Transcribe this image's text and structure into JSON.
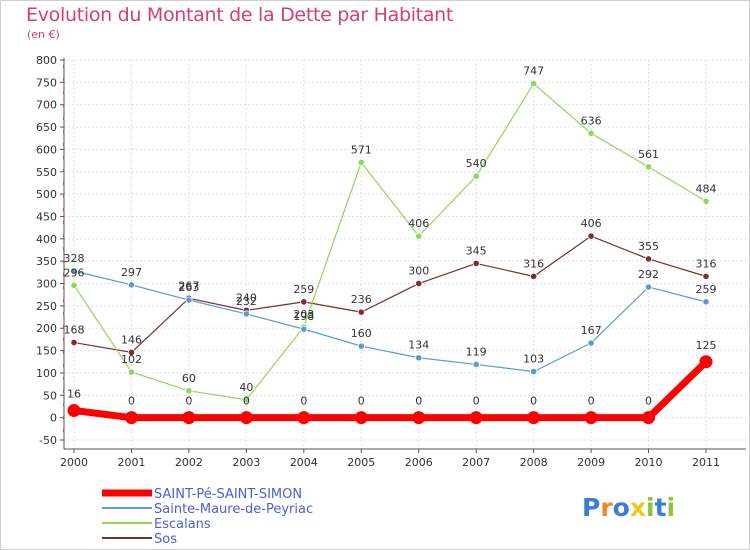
{
  "chart_data": {
    "type": "line",
    "title": "Evolution du Montant de la Dette par Habitant",
    "unit": "(en €)",
    "x": [
      "2000",
      "2001",
      "2002",
      "2003",
      "2004",
      "2005",
      "2006",
      "2007",
      "2008",
      "2009",
      "2010",
      "2011"
    ],
    "ylim": [
      -50,
      800
    ],
    "yticks": [
      -50,
      0,
      50,
      100,
      150,
      200,
      250,
      300,
      350,
      400,
      450,
      500,
      550,
      600,
      650,
      700,
      750,
      800
    ],
    "grid": true,
    "legend_position": "bottom-left",
    "series": [
      {
        "name": "SAINT-Pé-SAINT-SIMON",
        "color": "#ff0000",
        "emphasis": true,
        "values": [
          16,
          0,
          0,
          0,
          0,
          0,
          0,
          0,
          0,
          0,
          0,
          125
        ]
      },
      {
        "name": "Sainte-Maure-de-Peyriac",
        "color": "#5a9bd5",
        "emphasis": false,
        "values": [
          328,
          297,
          263,
          232,
          198,
          160,
          134,
          119,
          103,
          167,
          292,
          259
        ]
      },
      {
        "name": "Escalans",
        "color": "#8fd65a",
        "emphasis": false,
        "values": [
          296,
          102,
          60,
          40,
          203,
          571,
          406,
          540,
          747,
          636,
          561,
          484
        ]
      },
      {
        "name": "Sos",
        "color": "#7a2e2e",
        "emphasis": false,
        "values": [
          168,
          146,
          267,
          240,
          259,
          236,
          300,
          345,
          316,
          406,
          355,
          316
        ]
      }
    ]
  },
  "logo": {
    "letters": [
      "P",
      "r",
      "o",
      "x",
      "i",
      "t",
      "i"
    ],
    "colors": [
      "#3a7fd0",
      "#f08a1e",
      "#3a7fd0",
      "#f0c81e",
      "#8cc63e",
      "#3a7fd0",
      "#8cc63e"
    ]
  }
}
